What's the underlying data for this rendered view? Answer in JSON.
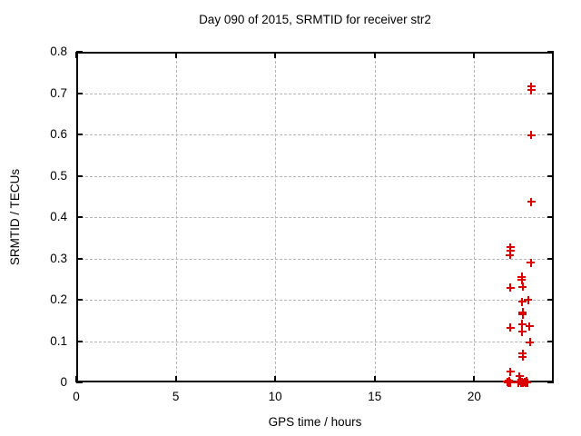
{
  "figure": {
    "title": "Day 090 of 2015, SRMTID for receiver str2",
    "xlabel": "GPS time / hours",
    "ylabel": "SRMTID / TECUs"
  },
  "colors": {
    "marker": "#dd0000",
    "grid": "#b5b5b5",
    "axis": "#000000",
    "background": "#ffffff",
    "text": "#000000"
  },
  "chart_data": {
    "type": "scatter",
    "title": "Day 090 of 2015, SRMTID for receiver str2",
    "xlabel": "GPS time / hours",
    "ylabel": "SRMTID / TECUs",
    "xlim": [
      0,
      24
    ],
    "ylim": [
      0,
      0.8
    ],
    "grid": true,
    "legend": "none",
    "marker": "plus",
    "xticks": [
      {
        "v": 0,
        "label": "0"
      },
      {
        "v": 5,
        "label": "5"
      },
      {
        "v": 10,
        "label": "10"
      },
      {
        "v": 15,
        "label": "15"
      },
      {
        "v": 20,
        "label": "20"
      }
    ],
    "yticks": [
      {
        "v": 0.0,
        "label": "0"
      },
      {
        "v": 0.1,
        "label": "0.1"
      },
      {
        "v": 0.2,
        "label": "0.2"
      },
      {
        "v": 0.3,
        "label": "0.3"
      },
      {
        "v": 0.4,
        "label": "0.4"
      },
      {
        "v": 0.5,
        "label": "0.5"
      },
      {
        "v": 0.6,
        "label": "0.6"
      },
      {
        "v": 0.7,
        "label": "0.7"
      },
      {
        "v": 0.8,
        "label": "0.8"
      }
    ],
    "series": [
      {
        "name": "SRMTID",
        "color": "#dd0000",
        "points": [
          [
            22.86,
            0.716
          ],
          [
            22.86,
            0.707
          ],
          [
            22.87,
            0.598
          ],
          [
            22.87,
            0.437
          ],
          [
            21.82,
            0.327
          ],
          [
            21.82,
            0.318
          ],
          [
            21.8,
            0.308
          ],
          [
            22.85,
            0.29
          ],
          [
            22.4,
            0.256
          ],
          [
            22.4,
            0.248
          ],
          [
            22.44,
            0.231
          ],
          [
            21.82,
            0.229
          ],
          [
            22.72,
            0.199
          ],
          [
            22.42,
            0.195
          ],
          [
            22.43,
            0.17
          ],
          [
            22.43,
            0.164
          ],
          [
            22.41,
            0.141
          ],
          [
            22.78,
            0.136
          ],
          [
            21.83,
            0.132
          ],
          [
            22.41,
            0.123
          ],
          [
            22.81,
            0.097
          ],
          [
            22.44,
            0.07
          ],
          [
            22.44,
            0.062
          ],
          [
            21.81,
            0.026
          ],
          [
            22.28,
            0.015
          ],
          [
            21.66,
            0.002
          ],
          [
            21.71,
            0.0
          ],
          [
            21.76,
            0.004
          ],
          [
            21.81,
            0.0
          ],
          [
            22.24,
            0.0
          ],
          [
            22.29,
            0.003
          ],
          [
            22.34,
            0.0
          ],
          [
            22.39,
            0.002
          ],
          [
            22.44,
            0.0
          ],
          [
            22.52,
            0.002
          ],
          [
            22.57,
            0.0
          ],
          [
            22.62,
            0.003
          ],
          [
            22.67,
            0.0
          ]
        ]
      }
    ]
  }
}
